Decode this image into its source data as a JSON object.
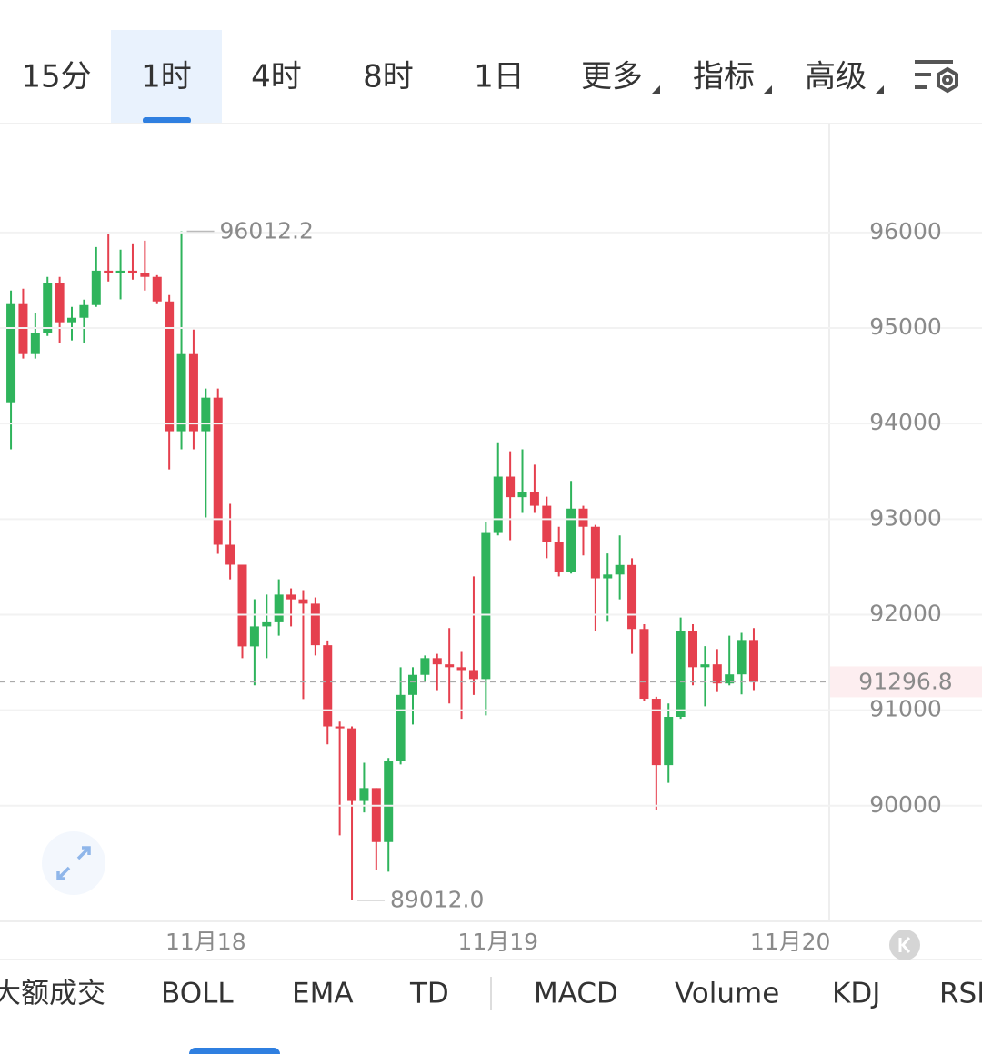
{
  "tabs": [
    "15分",
    "1时",
    "4时",
    "8时",
    "1日",
    "更多",
    "指标",
    "高级"
  ],
  "active_tab": 1,
  "indicators": [
    "大额成交",
    "BOLL",
    "EMA",
    "TD",
    "MACD",
    "Volume",
    "KDJ",
    "RSI"
  ],
  "chart_data": {
    "type": "candlestick",
    "up_color": "#2fb45c",
    "down_color": "#e5404e",
    "open": [
      94223,
      95250,
      94727,
      94946,
      95468,
      95060,
      95107,
      95240,
      95600,
      95580,
      95600,
      95580,
      95535,
      95278,
      93920,
      94727,
      93920,
      94271,
      92732,
      92523,
      91668,
      91877,
      91920,
      92210,
      92160,
      92115,
      91680,
      90830,
      90810,
      90050,
      90185,
      89620,
      90470,
      91160,
      91370,
      91545,
      91480,
      91450,
      91420,
      91326,
      92855,
      93445,
      93230,
      93285,
      93140,
      92760,
      92450,
      93110,
      92920,
      92380,
      92420,
      92520,
      91850,
      91120,
      90425,
      90930,
      91830,
      91450,
      91480,
      91280,
      91375,
      91735
    ],
    "high": [
      95392,
      95411,
      95155,
      95535,
      95535,
      95221,
      95297,
      95848,
      95981,
      95820,
      95886,
      95914,
      95553,
      95345,
      96012.2,
      94983,
      94366,
      94366,
      93160,
      92523,
      92162,
      92210,
      92370,
      92275,
      92257,
      92180,
      91730,
      90880,
      90830,
      90450,
      90185,
      90500,
      91450,
      91450,
      91573,
      91590,
      91860,
      91610,
      92400,
      92970,
      93795,
      93710,
      93730,
      93570,
      93235,
      92920,
      93400,
      93140,
      92940,
      92640,
      92830,
      92590,
      91900,
      91140,
      91070,
      91970,
      91900,
      91670,
      91640,
      91780,
      91810,
      91860
    ],
    "low": [
      93730,
      94680,
      94680,
      94917,
      94841,
      94870,
      94840,
      95221,
      95487,
      95300,
      95506,
      95392,
      95250,
      93520,
      93730,
      93730,
      93017,
      92637,
      92370,
      91545,
      91260,
      91545,
      91780,
      91877,
      91117,
      91573,
      90642,
      89690,
      89012.0,
      89930,
      89330,
      89310,
      90432,
      90850,
      91307,
      91210,
      91070,
      90910,
      91160,
      90945,
      92830,
      92780,
      93065,
      93065,
      92590,
      92400,
      92430,
      92620,
      91830,
      91925,
      92160,
      91590,
      91100,
      89960,
      90240,
      90910,
      91260,
      91040,
      91190,
      91260,
      91165,
      91210
    ],
    "close": [
      95250,
      94727,
      94946,
      95468,
      95060,
      95107,
      95240,
      95600,
      95580,
      95600,
      95580,
      95535,
      95278,
      93920,
      94727,
      93920,
      94271,
      92732,
      92523,
      91668,
      91877,
      91920,
      92210,
      92160,
      92115,
      91680,
      90830,
      90810,
      90050,
      90185,
      89620,
      90470,
      91160,
      91370,
      91545,
      91480,
      91450,
      91420,
      91326,
      92855,
      93445,
      93230,
      93285,
      93140,
      92760,
      92450,
      93110,
      92920,
      92380,
      92420,
      92520,
      91850,
      91120,
      90425,
      90930,
      91830,
      91450,
      91480,
      91280,
      91375,
      91735,
      91296.8
    ],
    "xlim": [
      -0.9,
      67.2
    ],
    "xticks": [
      {
        "value": 16,
        "label": "11月18"
      },
      {
        "value": 40,
        "label": "11月19"
      },
      {
        "value": 64,
        "label": "11月20"
      }
    ],
    "ylim": [
      88800,
      97130
    ],
    "yticks": [
      90000,
      91000,
      92000,
      93000,
      94000,
      95000,
      96000
    ],
    "grid": true,
    "last_price": 91296.8,
    "max_label": 96012.2,
    "min_label": {
      "value": 89012.0,
      "label": "89012.0"
    }
  }
}
